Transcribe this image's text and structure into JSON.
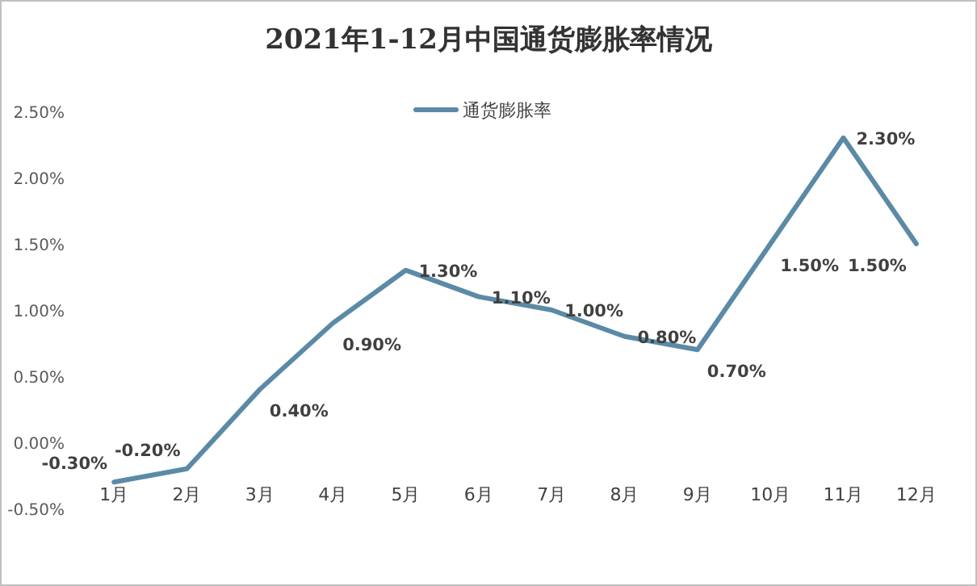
{
  "chart_data": {
    "type": "line",
    "title": "2021年1-12月中国通货膨胀率情况",
    "categories": [
      "1月",
      "2月",
      "3月",
      "4月",
      "5月",
      "6月",
      "7月",
      "8月",
      "9月",
      "10月",
      "11月",
      "12月"
    ],
    "series": [
      {
        "name": "通货膨胀率",
        "color": "#5b8aa6",
        "values": [
          -0.3,
          -0.2,
          0.4,
          0.9,
          1.3,
          1.1,
          1.0,
          0.8,
          0.7,
          1.5,
          2.3,
          1.5
        ],
        "value_labels": [
          "-0.30%",
          "-0.20%",
          "0.40%",
          "0.90%",
          "1.30%",
          "1.10%",
          "1.00%",
          "0.80%",
          "0.70%",
          "1.50%",
          "2.30%",
          "1.50%"
        ]
      }
    ],
    "ylim": [
      -0.5,
      2.5
    ],
    "yticks": [
      {
        "value": -0.5,
        "label": "-0.50%"
      },
      {
        "value": 0,
        "label": "0.00%"
      },
      {
        "value": 0.5,
        "label": "0.50%"
      },
      {
        "value": 1,
        "label": "1.00%"
      },
      {
        "value": 1.5,
        "label": "1.50%"
      },
      {
        "value": 2,
        "label": "2.00%"
      },
      {
        "value": 2.5,
        "label": "2.50%"
      }
    ],
    "legend": "top",
    "marker": "none",
    "line_style": "solid"
  }
}
